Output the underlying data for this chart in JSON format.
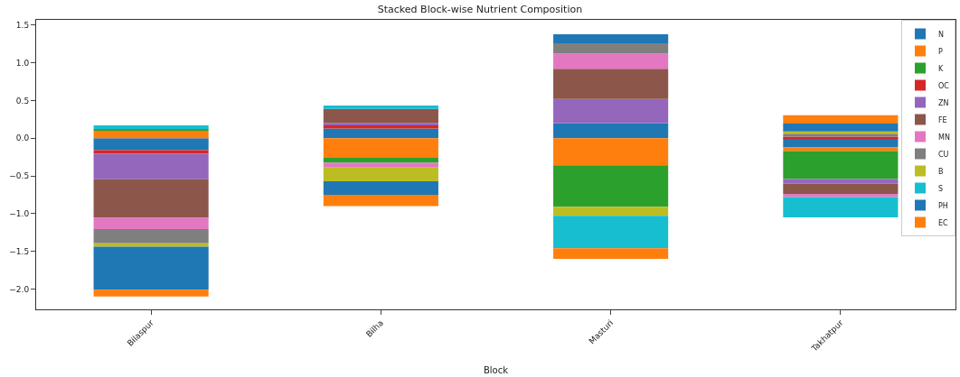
{
  "chart_data": {
    "type": "bar",
    "stacked": true,
    "title": "Stacked Block-wise Nutrient Composition",
    "xlabel": "Block",
    "categories": [
      "Bilaspur",
      "Bilha",
      "Masturi",
      "Takhatpur"
    ],
    "series": [
      {
        "name": "N",
        "color": "#1f77b4",
        "values": [
          -0.16,
          0.13,
          0.2,
          -0.12
        ]
      },
      {
        "name": "P",
        "color": "#ff7f0e",
        "values": [
          0.1,
          -0.26,
          -0.36,
          -0.05
        ]
      },
      {
        "name": "K",
        "color": "#2ca02c",
        "values": [
          0.02,
          -0.065,
          -0.55,
          -0.37
        ]
      },
      {
        "name": "OC",
        "color": "#d62728",
        "values": [
          -0.045,
          0.05,
          0,
          0.02
        ]
      },
      {
        "name": "ZN",
        "color": "#9467bd",
        "values": [
          -0.34,
          0.02,
          0.32,
          -0.06
        ]
      },
      {
        "name": "FE",
        "color": "#8c564b",
        "values": [
          -0.51,
          0.19,
          0.4,
          -0.14
        ]
      },
      {
        "name": "MN",
        "color": "#e377c2",
        "values": [
          -0.15,
          -0.065,
          0.2,
          -0.04
        ]
      },
      {
        "name": "CU",
        "color": "#7f7f7f",
        "values": [
          -0.19,
          0,
          0.14,
          0.04
        ]
      },
      {
        "name": "B",
        "color": "#bcbd22",
        "values": [
          -0.045,
          -0.18,
          -0.12,
          0.03
        ]
      },
      {
        "name": "S",
        "color": "#17becf",
        "values": [
          0.05,
          0.045,
          -0.43,
          -0.27
        ]
      },
      {
        "name": "PH",
        "color": "#1f77b4",
        "values": [
          -0.57,
          -0.18,
          0.12,
          0.105
        ]
      },
      {
        "name": "EC",
        "color": "#ff7f0e",
        "values": [
          -0.09,
          -0.15,
          -0.14,
          0.11
        ]
      }
    ],
    "ylim": [
      -2.27,
      1.57
    ],
    "yticks": [
      {
        "value": -2,
        "label": "−2.0"
      },
      {
        "value": -1.5,
        "label": "−1.5"
      },
      {
        "value": -1,
        "label": "−1.0"
      },
      {
        "value": -0.5,
        "label": "−0.5"
      },
      {
        "value": 0,
        "label": "0.0"
      },
      {
        "value": 0.5,
        "label": "0.5"
      },
      {
        "value": 1,
        "label": "1.0"
      },
      {
        "value": 1.5,
        "label": "1.5"
      }
    ],
    "grid": false,
    "legend": "top right"
  }
}
